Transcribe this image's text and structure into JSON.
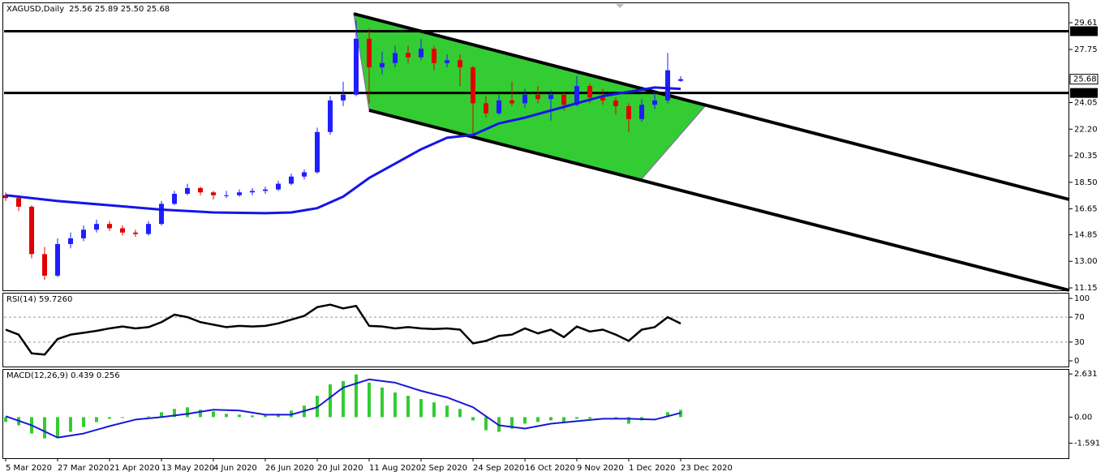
{
  "header": {
    "symbol": "XAGUSD,Daily",
    "ohlc": "25.56 25.89 25.50 25.68"
  },
  "chart_data": [
    {
      "type": "candlestick",
      "x": [
        0,
        4,
        8,
        12,
        16,
        20,
        24,
        28,
        32,
        36,
        40,
        44,
        48,
        52,
        56,
        60,
        64,
        68,
        72,
        76,
        80,
        84,
        88,
        92,
        96,
        100,
        104,
        108,
        112,
        116,
        120,
        124,
        128,
        132,
        136,
        140,
        144,
        148,
        152,
        156,
        160,
        164,
        168,
        172,
        176,
        180,
        184,
        188,
        192,
        196,
        200,
        204,
        208
      ],
      "open": [
        17.6,
        17.4,
        16.8,
        13.5,
        12.0,
        14.2,
        14.6,
        15.2,
        15.6,
        15.3,
        15.0,
        14.9,
        15.6,
        17.0,
        17.7,
        18.1,
        17.8,
        17.6,
        17.6,
        17.8,
        17.9,
        18.0,
        18.4,
        18.9,
        19.2,
        22.0,
        24.2,
        24.6,
        28.5,
        26.5,
        26.8,
        27.5,
        27.2,
        27.8,
        26.8,
        27.0,
        26.5,
        24.0,
        23.3,
        24.2,
        24.0,
        24.6,
        24.3,
        24.6,
        23.9,
        25.2,
        24.4,
        24.2,
        23.8,
        22.9,
        23.9,
        24.2,
        25.56
      ],
      "high": [
        17.8,
        17.6,
        16.9,
        14.0,
        14.6,
        15.0,
        15.5,
        15.9,
        15.8,
        15.5,
        15.2,
        15.8,
        17.2,
        17.9,
        18.4,
        18.2,
        17.9,
        17.9,
        18.0,
        18.1,
        18.2,
        18.6,
        19.1,
        19.4,
        22.3,
        24.5,
        25.5,
        29.8,
        29.2,
        27.6,
        28.0,
        28.0,
        28.5,
        28.0,
        27.4,
        27.4,
        26.6,
        24.5,
        24.6,
        25.5,
        25.0,
        25.2,
        24.9,
        24.8,
        25.9,
        25.4,
        25.0,
        24.4,
        24.0,
        24.3,
        24.8,
        27.5,
        25.89
      ],
      "low": [
        17.2,
        16.5,
        13.2,
        11.7,
        11.9,
        13.9,
        14.4,
        15.0,
        15.1,
        14.8,
        14.7,
        14.8,
        15.5,
        16.9,
        17.6,
        17.6,
        17.3,
        17.4,
        17.5,
        17.6,
        17.7,
        17.9,
        18.3,
        18.7,
        19.1,
        21.8,
        23.8,
        24.5,
        24.0,
        26.0,
        26.5,
        26.8,
        27.0,
        26.3,
        26.5,
        25.2,
        21.8,
        23.0,
        23.2,
        23.8,
        23.7,
        24.0,
        22.8,
        23.5,
        23.8,
        24.0,
        23.9,
        23.2,
        22.0,
        22.7,
        23.6,
        24.0,
        25.5
      ],
      "close": [
        17.4,
        16.8,
        13.5,
        12.0,
        14.2,
        14.6,
        15.2,
        15.6,
        15.3,
        15.0,
        14.9,
        15.6,
        17.0,
        17.7,
        18.1,
        17.8,
        17.6,
        17.6,
        17.8,
        17.9,
        18.0,
        18.4,
        18.9,
        19.2,
        22.0,
        24.2,
        24.6,
        28.5,
        26.5,
        26.8,
        27.5,
        27.2,
        27.8,
        26.8,
        27.0,
        26.5,
        24.0,
        23.3,
        24.2,
        24.0,
        24.6,
        24.3,
        24.6,
        23.9,
        25.2,
        24.4,
        24.2,
        23.8,
        22.9,
        23.9,
        24.2,
        26.3,
        25.68
      ],
      "up_color": "#1e1eff",
      "down_color": "#e00000",
      "moving_average": {
        "x": [
          0,
          16,
          32,
          48,
          64,
          80,
          88,
          96,
          104,
          112,
          120,
          128,
          136,
          144,
          152,
          160,
          168,
          176,
          184,
          192,
          200,
          208
        ],
        "values": [
          17.6,
          17.2,
          16.9,
          16.6,
          16.4,
          16.35,
          16.4,
          16.7,
          17.5,
          18.8,
          19.8,
          20.8,
          21.6,
          21.8,
          22.6,
          23.0,
          23.5,
          24.0,
          24.5,
          24.8,
          25.1,
          25.0
        ],
        "color": "#1515e8"
      },
      "hlines": [
        29.02,
        24.72
      ],
      "price_tag": 25.68,
      "ylim": [
        10.98,
        30.91
      ],
      "yticks": [
        29.61,
        27.75,
        24.05,
        {
          "value": 22.2,
          "label": "22.20"
        },
        20.35,
        {
          "value": 18.5,
          "label": "18.50"
        },
        16.65,
        14.85,
        {
          "value": 13.0,
          "label": "13.00"
        },
        11.15
      ],
      "xlim": [
        -0.5,
        327.75
      ],
      "xticks": [
        {
          "value": 0,
          "label": "5 Mar 2020"
        },
        {
          "value": 16,
          "label": "27 Mar 2020"
        },
        {
          "value": 32,
          "label": "21 Apr 2020"
        },
        {
          "value": 48,
          "label": "13 May 2020"
        },
        {
          "value": 64,
          "label": "4 Jun 2020"
        },
        {
          "value": 80,
          "label": "26 Jun 2020"
        },
        {
          "value": 96,
          "label": "20 Jul 2020"
        },
        {
          "value": 112,
          "label": "11 Aug 2020"
        },
        {
          "value": 128,
          "label": "2 Sep 2020"
        },
        {
          "value": 144,
          "label": "24 Sep 2020"
        },
        {
          "value": 160,
          "label": "16 Oct 2020"
        },
        {
          "value": 176,
          "label": "9 Nov 2020"
        },
        {
          "value": 192,
          "label": "1 Dec 2020"
        },
        {
          "value": 208,
          "label": "23 Dec 2020"
        }
      ]
    },
    {
      "type": "line",
      "title": "RSI(14) 59.7260",
      "x": [
        0,
        4,
        8,
        12,
        16,
        20,
        24,
        28,
        32,
        36,
        40,
        44,
        48,
        52,
        56,
        60,
        64,
        68,
        72,
        76,
        80,
        84,
        88,
        92,
        96,
        100,
        104,
        108,
        112,
        116,
        120,
        124,
        128,
        132,
        136,
        140,
        144,
        148,
        152,
        156,
        160,
        164,
        168,
        172,
        176,
        180,
        184,
        188,
        192,
        196,
        200,
        204,
        208
      ],
      "values": [
        50,
        42,
        12,
        10,
        35,
        42,
        45,
        48,
        52,
        55,
        52,
        54,
        62,
        74,
        70,
        62,
        58,
        54,
        56,
        55,
        56,
        60,
        66,
        72,
        86,
        90,
        84,
        88,
        56,
        55,
        52,
        54,
        52,
        51,
        52,
        50,
        28,
        32,
        40,
        42,
        52,
        44,
        50,
        38,
        55,
        47,
        50,
        42,
        32,
        50,
        54,
        70,
        59.726
      ],
      "color": "#000000",
      "levels": [
        70,
        30
      ],
      "ylim": [
        -9.1,
        107.8
      ],
      "yticks": [
        100,
        70,
        30,
        0
      ]
    },
    {
      "type": "macd",
      "title": "MACD(12,26,9) 0.439 0.256",
      "x": [
        0,
        4,
        8,
        12,
        16,
        20,
        24,
        28,
        32,
        36,
        40,
        44,
        48,
        52,
        56,
        60,
        64,
        68,
        72,
        76,
        80,
        84,
        88,
        92,
        96,
        100,
        104,
        108,
        112,
        116,
        120,
        124,
        128,
        132,
        136,
        140,
        144,
        148,
        152,
        156,
        160,
        164,
        168,
        172,
        176,
        180,
        184,
        188,
        192,
        196,
        200,
        204,
        208
      ],
      "values": [
        -0.3,
        -0.5,
        -1.0,
        -1.3,
        -1.2,
        -0.9,
        -0.6,
        -0.3,
        -0.1,
        -0.05,
        0.0,
        0.05,
        0.3,
        0.5,
        0.6,
        0.45,
        0.35,
        0.2,
        0.15,
        0.1,
        0.1,
        0.2,
        0.4,
        0.7,
        1.3,
        2.0,
        2.2,
        2.6,
        2.1,
        1.8,
        1.5,
        1.3,
        1.1,
        0.9,
        0.7,
        0.5,
        -0.2,
        -0.8,
        -0.9,
        -0.7,
        -0.4,
        -0.3,
        -0.2,
        -0.3,
        -0.1,
        -0.1,
        0.0,
        -0.1,
        -0.4,
        -0.2,
        0.0,
        0.3,
        0.439
      ],
      "color": "#33cc33",
      "signal": {
        "x": [
          0,
          8,
          16,
          24,
          32,
          40,
          48,
          56,
          64,
          72,
          80,
          88,
          96,
          104,
          112,
          120,
          128,
          136,
          144,
          152,
          160,
          168,
          176,
          184,
          192,
          200,
          208
        ],
        "values": [
          0.05,
          -0.5,
          -1.25,
          -1.0,
          -0.55,
          -0.15,
          0.0,
          0.2,
          0.45,
          0.4,
          0.15,
          0.15,
          0.6,
          1.8,
          2.3,
          2.1,
          1.6,
          1.2,
          0.6,
          -0.5,
          -0.7,
          -0.4,
          -0.25,
          -0.1,
          -0.1,
          -0.15,
          0.256
        ],
        "color": "#1818d8"
      },
      "ylim": [
        -2.503,
        2.886
      ],
      "yticks": [
        2.631,
        {
          "value": 0,
          "label": "0.00"
        },
        -1.591
      ]
    }
  ]
}
